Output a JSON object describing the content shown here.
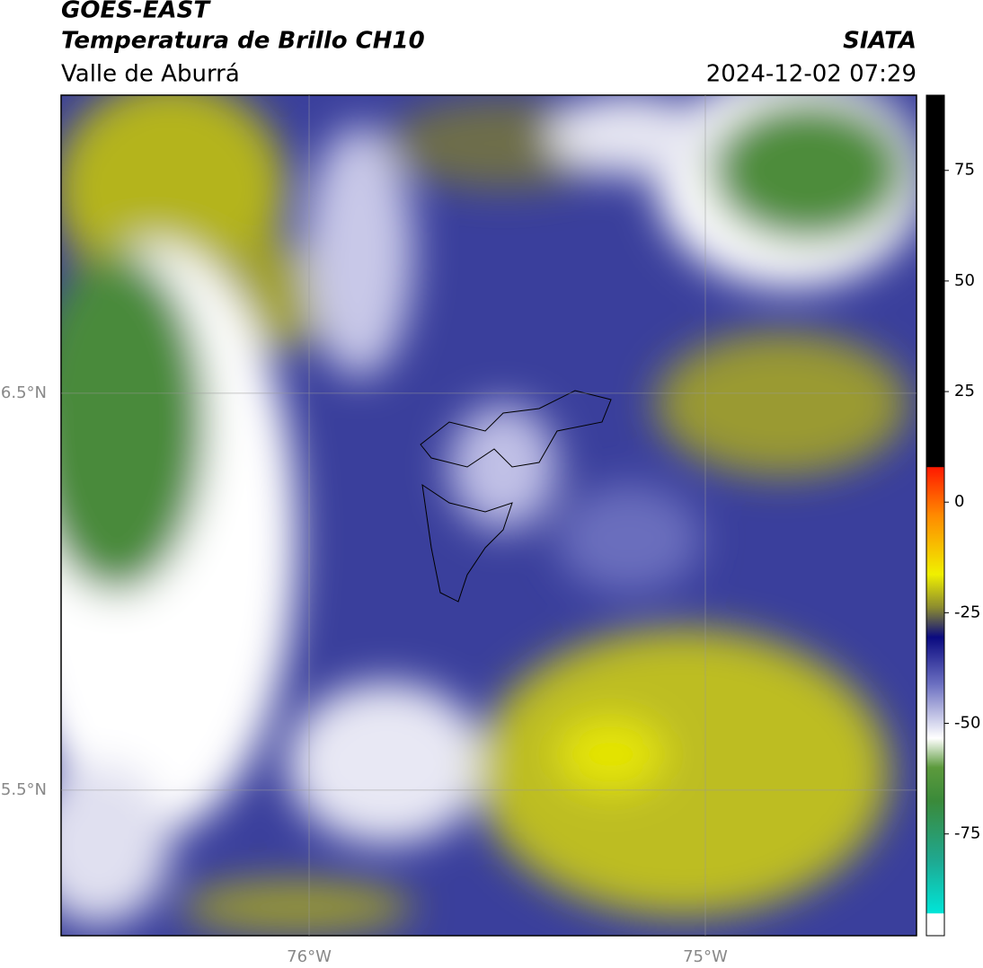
{
  "header": {
    "satellite": "GOES-EAST",
    "product": "Temperatura de Brillo CH10",
    "region": "Valle de Aburrá",
    "agency": "SIATA",
    "timestamp": "2024-12-02 07:29"
  },
  "map": {
    "lat_range": [
      5.133,
      7.251
    ],
    "lon_range": [
      -76.626,
      -74.467
    ],
    "lat_ticks": [
      {
        "value": 6.5,
        "label": "6.5°N"
      },
      {
        "value": 5.5,
        "label": "5.5°N"
      }
    ],
    "lon_ticks": [
      {
        "value": -76,
        "label": "76°W"
      },
      {
        "value": -75,
        "label": "75°W"
      }
    ]
  },
  "colorbar": {
    "range": [
      -98,
      92
    ],
    "ticks": [
      75,
      50,
      25,
      0,
      -25,
      -50,
      -75
    ]
  }
}
